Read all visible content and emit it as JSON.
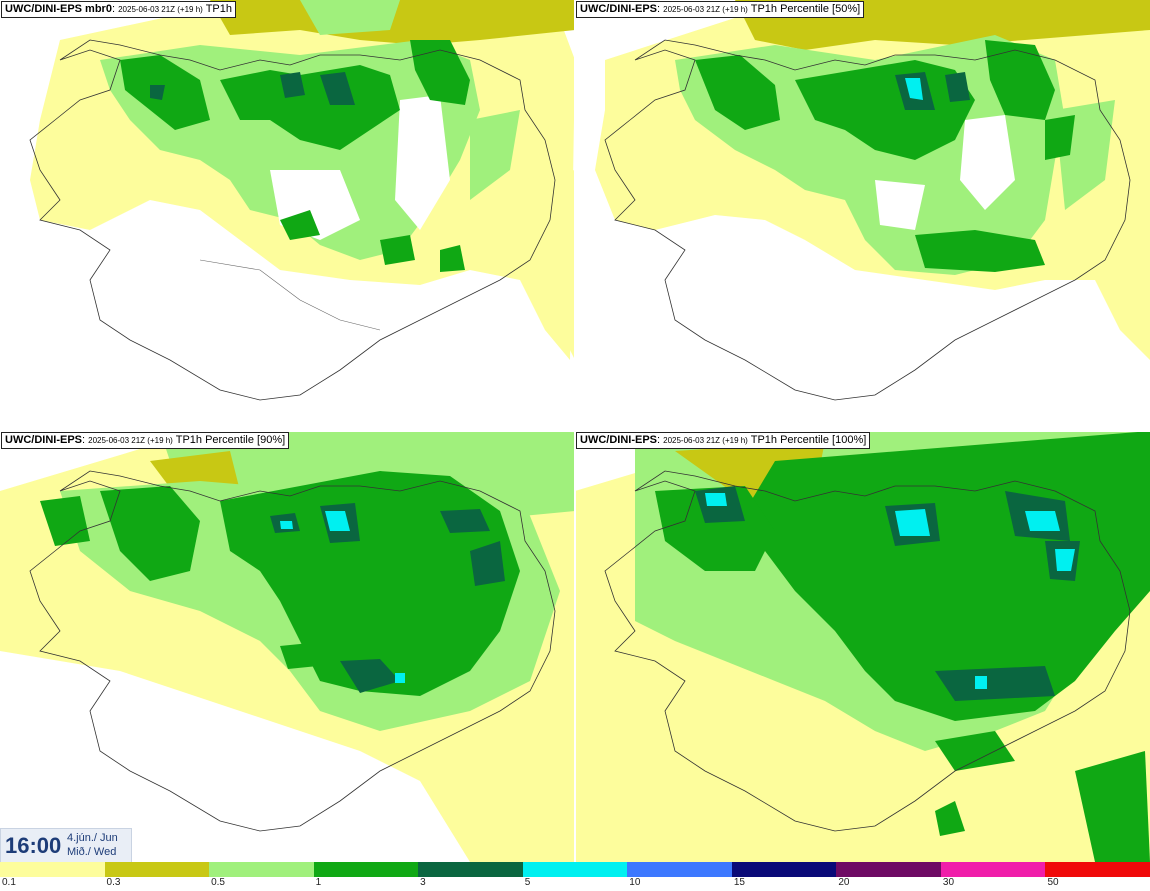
{
  "panels": [
    {
      "model": "UWC/DINI-EPS mbr0",
      "run": "2025-06-03 21Z (+19 h)",
      "field": "TP1h"
    },
    {
      "model": "UWC/DINI-EPS",
      "run": "2025-06-03 21Z (+19 h)",
      "field": "TP1h Percentile [50%]"
    },
    {
      "model": "UWC/DINI-EPS",
      "run": "2025-06-03 21Z (+19 h)",
      "field": "TP1h Percentile [90%]"
    },
    {
      "model": "UWC/DINI-EPS",
      "run": "2025-06-03 21Z (+19 h)",
      "field": "TP1h Percentile [100%]"
    }
  ],
  "valid_time": {
    "hour": "16:00",
    "date": "4.jún./ Jun",
    "weekday": "Mið./ Wed"
  },
  "legend": {
    "labels": [
      "0.1",
      "0.3",
      "0.5",
      "1",
      "3",
      "5",
      "10",
      "15",
      "20",
      "30",
      "50"
    ],
    "colors": [
      "#fdfd9c",
      "#c8c814",
      "#a0f07c",
      "#10a814",
      "#0a6640",
      "#00f0f0",
      "#3c78ff",
      "#0a0a78",
      "#6e0a64",
      "#f01eaa",
      "#f00a0a"
    ]
  }
}
